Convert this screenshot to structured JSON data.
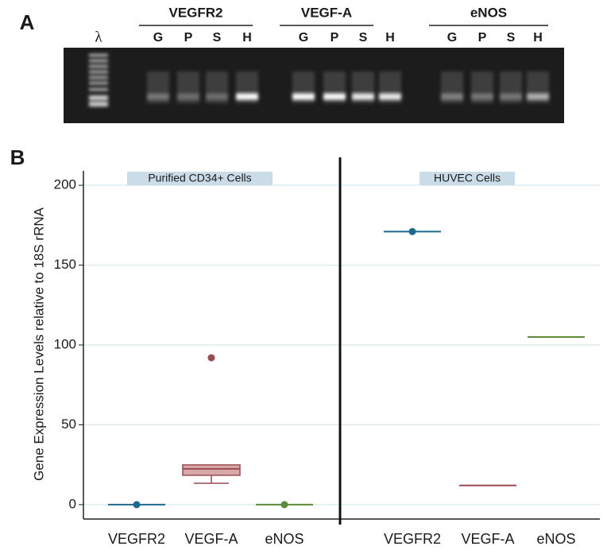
{
  "panel_a": {
    "label": "A",
    "ladder": "λ",
    "groups": [
      {
        "name": "VEGFR2",
        "lanes": [
          "G",
          "P",
          "S",
          "H"
        ]
      },
      {
        "name": "VEGF-A",
        "lanes": [
          "G",
          "P",
          "S",
          "H"
        ]
      },
      {
        "name": "eNOS",
        "lanes": [
          "G",
          "P",
          "S",
          "H"
        ]
      }
    ]
  },
  "chart_data": {
    "type": "box",
    "panel_label": "B",
    "ylabel": "Gene Expression Levels relative to 18S rRNA",
    "ylim": [
      -9,
      209
    ],
    "yticks": [
      0,
      50,
      100,
      150,
      200
    ],
    "grid": true,
    "colors": {
      "VEGFR2": "#1b6a90",
      "VEGF-A": "#9a4b52",
      "eNOS": "#5b8c3c"
    },
    "box_fill": "#d7aaa9",
    "panels": [
      {
        "title": "Purified CD34+ Cells",
        "categories": [
          "VEGFR2",
          "VEGF-A",
          "eNOS"
        ],
        "boxes": [
          {
            "median": 0,
            "marker": true
          },
          {
            "min": 13.4,
            "q1": 18.4,
            "median": 22.4,
            "q3": 24.9,
            "outliers": [
              92
            ]
          },
          {
            "median": 0,
            "marker": true
          }
        ]
      },
      {
        "title": "HUVEC Cells",
        "categories": [
          "VEGFR2",
          "VEGF-A",
          "eNOS"
        ],
        "boxes": [
          {
            "median": 171,
            "marker": true
          },
          {
            "median": 12
          },
          {
            "median": 105
          }
        ]
      }
    ]
  }
}
